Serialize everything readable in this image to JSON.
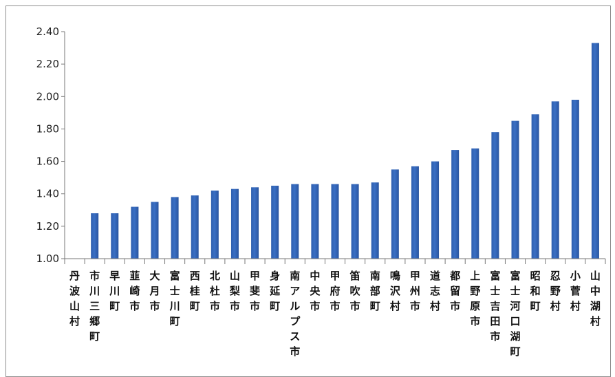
{
  "chart_data": {
    "type": "bar",
    "title": "",
    "xlabel": "",
    "ylabel": "",
    "ylim": [
      1.0,
      2.4
    ],
    "yticks": [
      "1.00",
      "1.20",
      "1.40",
      "1.60",
      "1.80",
      "2.00",
      "2.20",
      "2.40"
    ],
    "grid": false,
    "legend": "none",
    "bar_color": "#3a6fc4",
    "categories": [
      "丹波山村",
      "市川三郷町",
      "早川町",
      "韮崎市",
      "大月市",
      "富士川町",
      "西桂町",
      "北杜市",
      "山梨市",
      "甲斐市",
      "身延町",
      "南アルプス市",
      "中央市",
      "甲府市",
      "笛吹市",
      "南部町",
      "鳴沢村",
      "甲州市",
      "道志村",
      "都留市",
      "上野原市",
      "富士吉田市",
      "富士河口湖町",
      "昭和町",
      "忍野村",
      "小菅村",
      "山中湖村"
    ],
    "values": [
      null,
      1.28,
      1.28,
      1.32,
      1.35,
      1.38,
      1.39,
      1.42,
      1.43,
      1.44,
      1.45,
      1.46,
      1.46,
      1.46,
      1.46,
      1.47,
      1.55,
      1.57,
      1.6,
      1.67,
      1.68,
      1.78,
      1.85,
      1.89,
      1.97,
      1.98,
      2.33
    ]
  }
}
